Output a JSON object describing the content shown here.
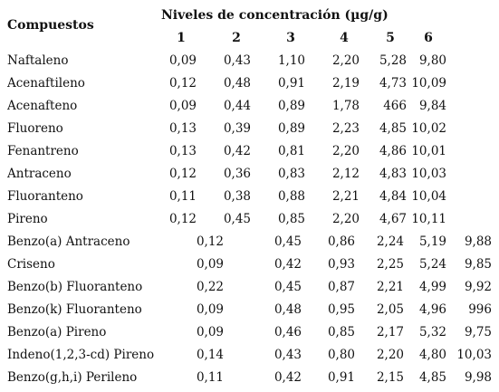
{
  "table": {
    "compounds_header": "Compuestos",
    "levels_header": "Niveles de concentración (µg/g)",
    "level_numbers": [
      "1",
      "2",
      "3",
      "4",
      "5",
      "6"
    ],
    "rows": [
      {
        "name": "Naftaleno",
        "values": [
          "0,09",
          "0,43",
          "1,10",
          "2,20",
          "5,28",
          "9,80"
        ]
      },
      {
        "name": "Acenaftileno",
        "values": [
          "0,12",
          "0,48",
          "0,91",
          "2,19",
          "4,73",
          "10,09"
        ]
      },
      {
        "name": "Acenafteno",
        "values": [
          "0,09",
          "0,44",
          "0,89",
          "1,78",
          "466",
          "9,84"
        ]
      },
      {
        "name": "Fluoreno",
        "values": [
          "0,13",
          "0,39",
          "0,89",
          "2,23",
          "4,85",
          "10,02"
        ]
      },
      {
        "name": "Fenantreno",
        "values": [
          "0,13",
          "0,42",
          "0,81",
          "2,20",
          "4,86",
          "10,01"
        ]
      },
      {
        "name": "Antraceno",
        "values": [
          "0,12",
          "0,36",
          "0,83",
          "2,12",
          "4,83",
          "10,03"
        ]
      },
      {
        "name": "Fluoranteno",
        "values": [
          "0,11",
          "0,38",
          "0,88",
          "2,21",
          "4,84",
          "10,04"
        ]
      },
      {
        "name": "Pireno",
        "values": [
          "0,12",
          "0,45",
          "0,85",
          "2,20",
          "4,67",
          "10,11"
        ]
      },
      {
        "name": "Benzo(a) Antraceno",
        "values": [
          "0,12",
          "0,45",
          "0,86",
          "2,24",
          "5,19",
          "9,88"
        ]
      },
      {
        "name": "Criseno",
        "values": [
          "0,09",
          "0,42",
          "0,93",
          "2,25",
          "5,24",
          "9,85"
        ]
      },
      {
        "name": "Benzo(b) Fluoranteno",
        "values": [
          "0,22",
          "0,45",
          "0,87",
          "2,21",
          "4,99",
          "9,92"
        ]
      },
      {
        "name": "Benzo(k) Fluoranteno",
        "values": [
          "0,09",
          "0,48",
          "0,95",
          "2,05",
          "4,96",
          "996"
        ]
      },
      {
        "name": "Benzo(a) Pireno",
        "values": [
          "0,09",
          "0,46",
          "0,85",
          "2,17",
          "5,32",
          "9,75"
        ]
      },
      {
        "name": "Indeno(1,2,3-cd) Pireno",
        "values": [
          "0,14",
          "0,43",
          "0,80",
          "2,20",
          "4,80",
          "10,03"
        ]
      },
      {
        "name": "Benzo(g,h,i) Perileno",
        "values": [
          "0,11",
          "0,42",
          "0,91",
          "2,15",
          "4,85",
          "9,98"
        ]
      }
    ]
  }
}
